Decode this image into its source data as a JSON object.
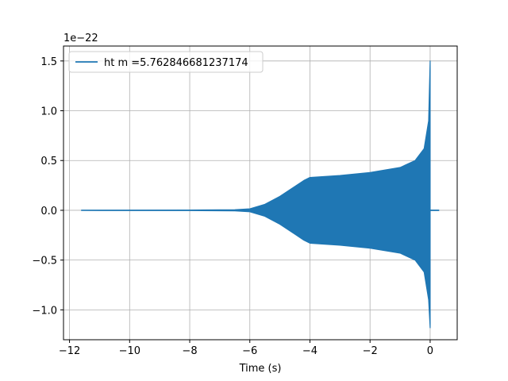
{
  "chart_data": {
    "type": "line",
    "title": "",
    "xlabel": "Time (s)",
    "ylabel": "",
    "offset_label": "1e−22",
    "xlim": [
      -12.2,
      0.9
    ],
    "ylim": [
      -1.3,
      1.65
    ],
    "x_ticks": [
      -12,
      -10,
      -8,
      -6,
      -4,
      -2,
      0
    ],
    "x_tick_labels": [
      "−12",
      "−10",
      "−8",
      "−6",
      "−4",
      "−2",
      "0"
    ],
    "y_ticks": [
      -1.0,
      -0.5,
      0.0,
      0.5,
      1.0,
      1.5
    ],
    "y_tick_labels": [
      "−1.0",
      "−0.5",
      "0.0",
      "0.5",
      "1.0",
      "1.5"
    ],
    "grid": true,
    "legend_position": "top-left",
    "series": [
      {
        "name": "ht m =5.762846681237174",
        "color": "#1f77b4",
        "envelope_x": [
          -11.6,
          -8.0,
          -6.5,
          -6.0,
          -5.5,
          -5.0,
          -4.5,
          -4.2,
          -4.0,
          -3.0,
          -2.0,
          -1.0,
          -0.5,
          -0.2,
          -0.05,
          0.0
        ],
        "envelope_upper": [
          0.002,
          0.003,
          0.006,
          0.015,
          0.06,
          0.14,
          0.24,
          0.3,
          0.33,
          0.35,
          0.38,
          0.43,
          0.5,
          0.62,
          0.9,
          1.5
        ],
        "envelope_lower": [
          -0.002,
          -0.003,
          -0.006,
          -0.015,
          -0.06,
          -0.14,
          -0.24,
          -0.3,
          -0.33,
          -0.35,
          -0.38,
          -0.43,
          -0.5,
          -0.62,
          -0.9,
          -1.18
        ],
        "ringdown_x": [
          0.0,
          0.3
        ],
        "ringdown_y": [
          0.0,
          0.0
        ]
      }
    ]
  }
}
